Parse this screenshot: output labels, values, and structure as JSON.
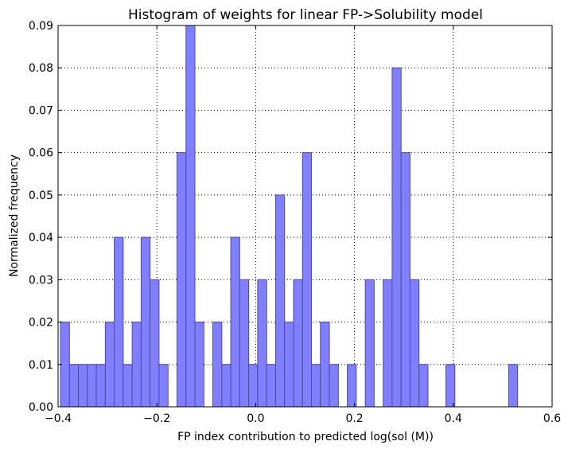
{
  "chart_data": {
    "type": "bar",
    "title": "Histogram of weights for linear FP->Solubility model",
    "xlabel": "FP index contribution to predicted log(sol (M))",
    "ylabel": "Normalized frequency",
    "xlim": [
      -0.4,
      0.6
    ],
    "ylim": [
      0.0,
      0.09
    ],
    "xticks": [
      "−0.4",
      "−0.2",
      "0.0",
      "0.2",
      "0.4",
      "0.6"
    ],
    "yticks": [
      "0.00",
      "0.01",
      "0.02",
      "0.03",
      "0.04",
      "0.05",
      "0.06",
      "0.07",
      "0.08",
      "0.09"
    ],
    "grid": true,
    "bar_color": "#7f7fff",
    "bar_edge_color": "#4c4c99",
    "bins": [
      {
        "left": -0.3952,
        "right": -0.377,
        "value": 0.02
      },
      {
        "left": -0.377,
        "right": -0.3589,
        "value": 0.01
      },
      {
        "left": -0.3589,
        "right": -0.3407,
        "value": 0.01
      },
      {
        "left": -0.3407,
        "right": -0.3226,
        "value": 0.01
      },
      {
        "left": -0.3226,
        "right": -0.3044,
        "value": 0.01
      },
      {
        "left": -0.3044,
        "right": -0.2863,
        "value": 0.02
      },
      {
        "left": -0.2863,
        "right": -0.2681,
        "value": 0.04
      },
      {
        "left": -0.2681,
        "right": -0.25,
        "value": 0.01
      },
      {
        "left": -0.25,
        "right": -0.2319,
        "value": 0.02
      },
      {
        "left": -0.2319,
        "right": -0.2137,
        "value": 0.04
      },
      {
        "left": -0.2137,
        "right": -0.1956,
        "value": 0.03
      },
      {
        "left": -0.1956,
        "right": -0.1774,
        "value": 0.01
      },
      {
        "left": -0.1774,
        "right": -0.1593,
        "value": 0.0
      },
      {
        "left": -0.1593,
        "right": -0.1411,
        "value": 0.06
      },
      {
        "left": -0.1411,
        "right": -0.123,
        "value": 0.09
      },
      {
        "left": -0.123,
        "right": -0.1048,
        "value": 0.02
      },
      {
        "left": -0.1048,
        "right": -0.0867,
        "value": 0.0
      },
      {
        "left": -0.0867,
        "right": -0.0685,
        "value": 0.02
      },
      {
        "left": -0.0685,
        "right": -0.0504,
        "value": 0.01
      },
      {
        "left": -0.0504,
        "right": -0.0323,
        "value": 0.04
      },
      {
        "left": -0.0323,
        "right": -0.0141,
        "value": 0.03
      },
      {
        "left": -0.0141,
        "right": 0.004,
        "value": 0.01
      },
      {
        "left": 0.004,
        "right": 0.0222,
        "value": 0.03
      },
      {
        "left": 0.0222,
        "right": 0.0403,
        "value": 0.01
      },
      {
        "left": 0.0403,
        "right": 0.0585,
        "value": 0.05
      },
      {
        "left": 0.0585,
        "right": 0.0766,
        "value": 0.02
      },
      {
        "left": 0.0766,
        "right": 0.0948,
        "value": 0.03
      },
      {
        "left": 0.0948,
        "right": 0.1129,
        "value": 0.06
      },
      {
        "left": 0.1129,
        "right": 0.131,
        "value": 0.01
      },
      {
        "left": 0.131,
        "right": 0.1492,
        "value": 0.02
      },
      {
        "left": 0.1492,
        "right": 0.1673,
        "value": 0.01
      },
      {
        "left": 0.1673,
        "right": 0.1855,
        "value": 0.0
      },
      {
        "left": 0.1855,
        "right": 0.2036,
        "value": 0.01
      },
      {
        "left": 0.2036,
        "right": 0.2218,
        "value": 0.0
      },
      {
        "left": 0.2218,
        "right": 0.2399,
        "value": 0.03
      },
      {
        "left": 0.2399,
        "right": 0.2581,
        "value": 0.0
      },
      {
        "left": 0.2581,
        "right": 0.2762,
        "value": 0.03
      },
      {
        "left": 0.2762,
        "right": 0.2944,
        "value": 0.08
      },
      {
        "left": 0.2944,
        "right": 0.3125,
        "value": 0.06
      },
      {
        "left": 0.3125,
        "right": 0.3306,
        "value": 0.03
      },
      {
        "left": 0.3306,
        "right": 0.3488,
        "value": 0.01
      },
      {
        "left": 0.3488,
        "right": 0.3669,
        "value": 0.0
      },
      {
        "left": 0.3669,
        "right": 0.3851,
        "value": 0.0
      },
      {
        "left": 0.3851,
        "right": 0.4032,
        "value": 0.01
      },
      {
        "left": 0.4032,
        "right": 0.4214,
        "value": 0.0
      },
      {
        "left": 0.4214,
        "right": 0.4395,
        "value": 0.0
      },
      {
        "left": 0.4395,
        "right": 0.4577,
        "value": 0.0
      },
      {
        "left": 0.4577,
        "right": 0.4758,
        "value": 0.0
      },
      {
        "left": 0.4758,
        "right": 0.494,
        "value": 0.0
      },
      {
        "left": 0.494,
        "right": 0.5121,
        "value": 0.0
      },
      {
        "left": 0.5121,
        "right": 0.5302,
        "value": 0.01
      }
    ]
  }
}
